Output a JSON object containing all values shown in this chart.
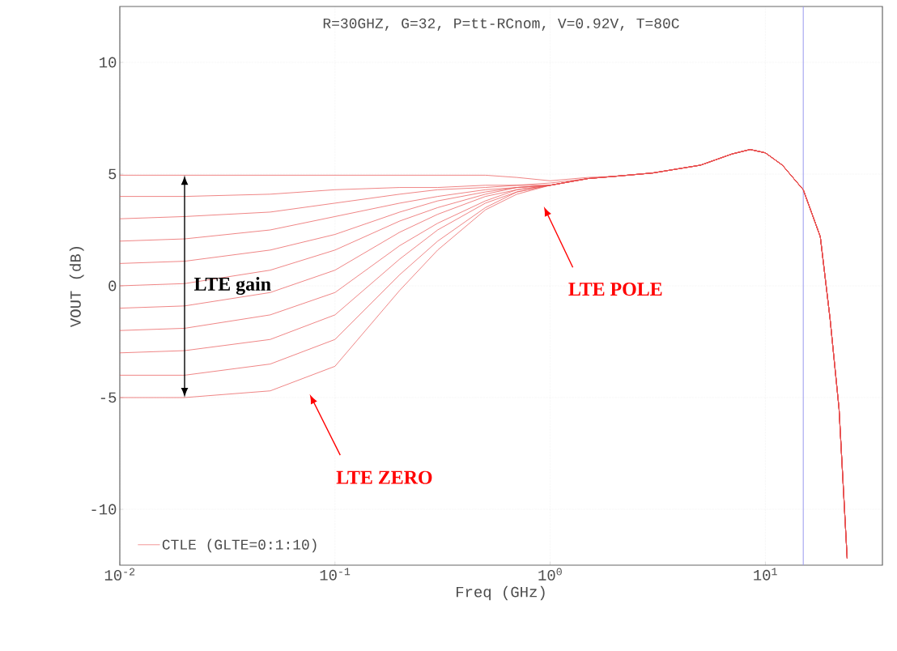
{
  "chart_data": {
    "type": "line",
    "title": "R=30GHZ, G=32, P=tt-RCnom, V=0.92V, T=80C",
    "xlabel": "Freq (GHz)",
    "ylabel": "VOUT (dB)",
    "log": "x",
    "grid": true,
    "legend": "bottom left",
    "line_style": "solid",
    "marker": "none",
    "xlim": [
      0.01,
      35
    ],
    "ylim": [
      -12.5,
      12.5
    ],
    "xticks": [
      {
        "value": 0.01,
        "label": "10$^{-2}$"
      },
      {
        "value": 0.1,
        "label": "10$^{-1}$"
      },
      {
        "value": 1,
        "label": "10$^{0}$"
      },
      {
        "value": 10,
        "label": "10$^{1}$"
      }
    ],
    "yticks": [
      -10,
      -5,
      0,
      5,
      10
    ],
    "x": [
      0.01,
      0.02,
      0.05,
      0.1,
      0.2,
      0.3,
      0.5,
      0.7,
      1,
      1.5,
      2,
      3,
      5,
      7,
      8.5,
      10,
      12,
      15,
      18,
      20,
      22,
      24
    ],
    "series": [
      {
        "name": "CTLE (GLTE=0:1:10)",
        "color": "#e85050",
        "values": [
          -5,
          -5,
          -4.7,
          -3.6,
          -0.2,
          1.6,
          3.4,
          4.1,
          4.5,
          4.8,
          4.9,
          5.05,
          5.4,
          5.9,
          6.1,
          5.95,
          5.4,
          4.3,
          2.2,
          -1.5,
          -5.5,
          -12.2
        ]
      },
      {
        "color": "#e85050",
        "values": [
          -4,
          -4,
          -3.5,
          -2.4,
          0.5,
          2,
          3.5,
          4.2,
          4.5,
          4.8,
          4.9,
          5.05,
          5.4,
          5.9,
          6.1,
          5.95,
          5.4,
          4.3,
          2.2,
          -1.5,
          -5.5,
          -12.2
        ]
      },
      {
        "color": "#e85050",
        "values": [
          -3,
          -2.9,
          -2.4,
          -1.3,
          1.2,
          2.5,
          3.7,
          4.2,
          4.5,
          4.8,
          4.9,
          5.05,
          5.4,
          5.9,
          6.1,
          5.95,
          5.4,
          4.3,
          2.2,
          -1.5,
          -5.5,
          -12.2
        ]
      },
      {
        "color": "#e85050",
        "values": [
          -2,
          -1.9,
          -1.3,
          -0.3,
          1.8,
          2.8,
          3.8,
          4.3,
          4.5,
          4.8,
          4.9,
          5.05,
          5.4,
          5.9,
          6.1,
          5.95,
          5.4,
          4.3,
          2.2,
          -1.5,
          -5.5,
          -12.2
        ]
      },
      {
        "color": "#e85050",
        "values": [
          -1,
          -0.9,
          -0.3,
          0.7,
          2.4,
          3.2,
          4,
          4.3,
          4.5,
          4.8,
          4.9,
          5.05,
          5.4,
          5.9,
          6.1,
          5.95,
          5.4,
          4.3,
          2.2,
          -1.5,
          -5.5,
          -12.2
        ]
      },
      {
        "color": "#e85050",
        "values": [
          0,
          0.1,
          0.7,
          1.6,
          2.9,
          3.5,
          4.1,
          4.4,
          4.5,
          4.8,
          4.9,
          5.05,
          5.4,
          5.9,
          6.1,
          5.95,
          5.4,
          4.3,
          2.2,
          -1.5,
          -5.5,
          -12.2
        ]
      },
      {
        "color": "#e85050",
        "values": [
          1,
          1.1,
          1.6,
          2.3,
          3.3,
          3.8,
          4.2,
          4.4,
          4.5,
          4.8,
          4.9,
          5.05,
          5.4,
          5.9,
          6.1,
          5.95,
          5.4,
          4.3,
          2.2,
          -1.5,
          -5.5,
          -12.2
        ]
      },
      {
        "color": "#e85050",
        "values": [
          2,
          2.1,
          2.5,
          3.1,
          3.7,
          4,
          4.3,
          4.4,
          4.5,
          4.8,
          4.9,
          5.05,
          5.4,
          5.9,
          6.1,
          5.95,
          5.4,
          4.3,
          2.2,
          -1.5,
          -5.5,
          -12.2
        ]
      },
      {
        "color": "#e85050",
        "values": [
          3,
          3.1,
          3.3,
          3.7,
          4.1,
          4.3,
          4.4,
          4.5,
          4.5,
          4.8,
          4.9,
          5.05,
          5.4,
          5.9,
          6.1,
          5.95,
          5.4,
          4.3,
          2.2,
          -1.5,
          -5.5,
          -12.2
        ]
      },
      {
        "color": "#e85050",
        "values": [
          4,
          4,
          4.1,
          4.3,
          4.4,
          4.4,
          4.5,
          4.5,
          4.6,
          4.8,
          4.9,
          5.05,
          5.4,
          5.9,
          6.1,
          5.95,
          5.4,
          4.3,
          2.2,
          -1.5,
          -5.5,
          -12.2
        ]
      },
      {
        "color": "#e85050",
        "values": [
          4.95,
          4.95,
          4.95,
          4.95,
          4.95,
          4.95,
          4.95,
          4.85,
          4.7,
          4.85,
          4.9,
          5.05,
          5.4,
          5.9,
          6.1,
          5.95,
          5.4,
          4.3,
          2.2,
          -1.5,
          -5.5,
          -12.2
        ]
      }
    ],
    "ref_lines": [
      {
        "axis": "x",
        "value": 15,
        "color": "#9999ee"
      }
    ],
    "annotations": [
      {
        "text": "LTE gain",
        "x": 0.02,
        "y": 0
      },
      "LTE POLE",
      "LTE ZERO"
    ]
  }
}
